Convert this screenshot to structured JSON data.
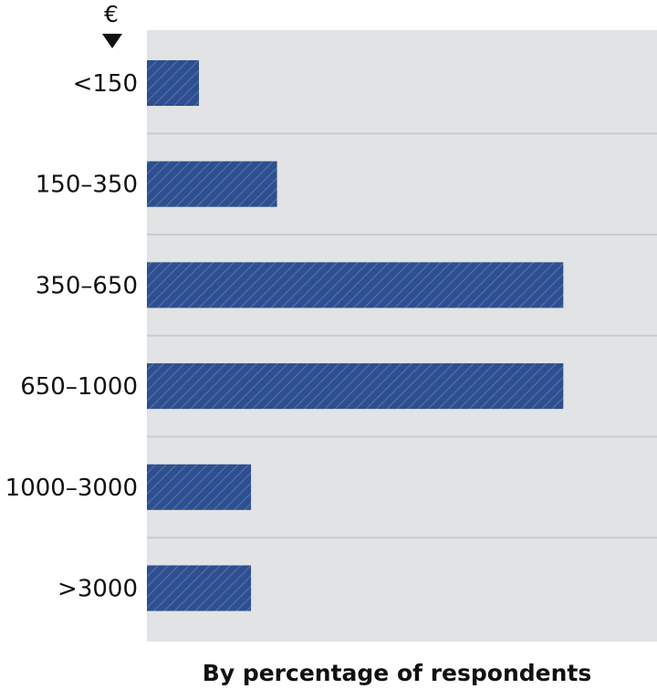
{
  "chart_data": {
    "type": "bar",
    "orientation": "horizontal",
    "unit_label": "€",
    "categories": [
      "<150",
      "150–350",
      "350–650",
      "650–1000",
      "1000–3000",
      ">3000"
    ],
    "values": [
      5,
      12.5,
      40,
      40,
      10,
      10
    ],
    "xlabel": "By percentage of respondents",
    "ylabel": "",
    "xlim": [
      0,
      49
    ],
    "grid": true,
    "bar_color": "#2e4f8f",
    "plot_background": "#e1e3e4",
    "gridline_color": "#c9cccd"
  }
}
